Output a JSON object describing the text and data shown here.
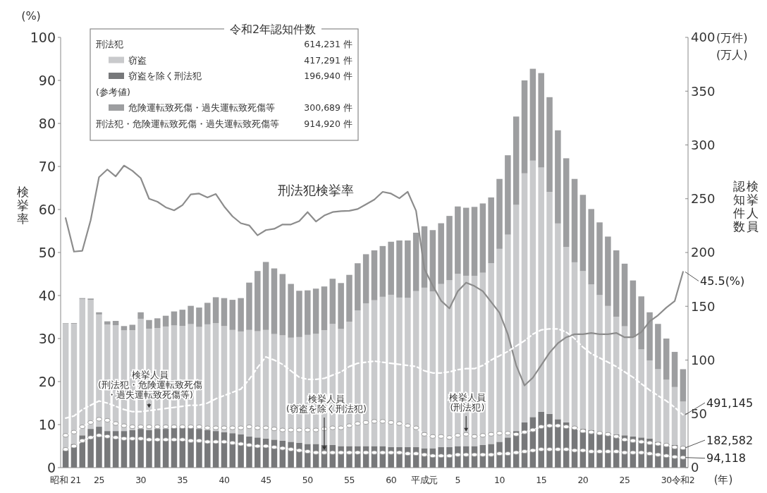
{
  "chart_data": {
    "type": "bar",
    "stacked": true,
    "ylabel": "検挙率",
    "y2label": "認知件数検挙人員",
    "xlabel": "(年)",
    "legend_title": "令和2年認知件数",
    "legend": "top left",
    "categories": [
      "昭和 21",
      null,
      null,
      null,
      "25",
      null,
      null,
      null,
      null,
      "30",
      null,
      null,
      null,
      null,
      "35",
      null,
      null,
      null,
      null,
      "40",
      null,
      null,
      null,
      null,
      "45",
      null,
      null,
      null,
      null,
      "50",
      null,
      null,
      null,
      null,
      "55",
      null,
      null,
      null,
      null,
      "60",
      null,
      null,
      null,
      "平成元",
      null,
      null,
      null,
      "5",
      null,
      null,
      null,
      null,
      "10",
      null,
      null,
      null,
      null,
      "15",
      null,
      null,
      null,
      null,
      "20",
      null,
      null,
      null,
      null,
      "25",
      null,
      null,
      null,
      null,
      "30",
      null,
      "令和2"
    ],
    "ylim": [
      0,
      100
    ],
    "yticks": [
      0,
      10,
      20,
      30,
      40,
      50,
      60,
      70,
      80,
      90,
      100
    ],
    "y2lim": [
      0,
      400
    ],
    "y2ticks": [
      0,
      50,
      100,
      150,
      200,
      250,
      300,
      350,
      400
    ],
    "annotations": [
      "(%)",
      "(万件)",
      "(万人)",
      "刑法犯",
      "614,231 件",
      "417,291 件",
      "196,940 件",
      "(参考値)",
      "300,689 件",
      "刑法犯・危険運転致死傷・過失運転致死傷等",
      "914,920 件",
      {
        "text": "491,145",
        "x": "令和2",
        "y": 12.28
      },
      {
        "text": "182,582",
        "x": "令和2",
        "y": 4.58
      },
      {
        "text": "94,118",
        "x": "令和2",
        "y": 2.35
      }
    ],
    "series": [
      {
        "name": "窃盗を除く刑法犯",
        "axis": "y2",
        "color": "#77787a",
        "values": [
          16,
          22,
          30,
          36,
          38,
          34,
          34,
          34,
          35,
          36,
          35,
          36,
          36,
          37,
          37,
          37,
          36,
          35,
          34,
          33,
          32,
          31,
          29,
          28,
          27,
          26,
          25,
          24,
          23,
          22,
          22,
          21,
          21,
          20,
          20,
          20,
          20,
          20,
          20,
          19,
          19,
          19,
          19,
          18,
          18,
          19,
          19,
          20,
          20,
          20,
          21,
          22,
          24,
          28,
          34,
          42,
          47,
          52,
          50,
          45,
          42,
          38,
          36,
          35,
          33,
          32,
          31,
          30,
          29,
          28,
          27,
          24,
          22,
          21,
          19.7
        ]
      },
      {
        "name": "窃盗",
        "axis": "y2",
        "color": "#c9cacc",
        "values": [
          118.0,
          111.8,
          126.8,
          120.0,
          104.4,
          99.0,
          98.4,
          93.6,
          92.8,
          102.4,
          94.2,
          93.8,
          95.2,
          95.2,
          94.8,
          96.4,
          94.8,
          98.2,
          100.4,
          98.6,
          96.0,
          95.6,
          99.0,
          98.8,
          101.0,
          98.2,
          98.0,
          96.8,
          98.4,
          101.4,
          102.4,
          106.8,
          112.6,
          108.9,
          115.7,
          126.1,
          132.8,
          135.6,
          138.8,
          141.7,
          139.1,
          138.8,
          145.1,
          149.3,
          145.7,
          151.7,
          155.2,
          160.1,
          158.4,
          158.3,
          160.2,
          168.0,
          179.4,
          188.6,
          210.3,
          231.6,
          238.4,
          227.0,
          206.3,
          182.0,
          163.1,
          152.9,
          146.7,
          135.3,
          127.4,
          118.3,
          109.3,
          101.4,
          92.2,
          81.9,
          72.6,
          67.5,
          59.7,
          53.9,
          41.7
        ]
      },
      {
        "name": "危険運転致死傷・過失運転致死傷等",
        "axis": "y2",
        "color": "#9d9ea0",
        "values": [
          0.4,
          0.6,
          0.8,
          1.2,
          2.0,
          3.0,
          4.0,
          4.0,
          5.0,
          6.0,
          8.0,
          9.0,
          10.0,
          13.0,
          15.0,
          17.0,
          18.0,
          20.0,
          24.0,
          26.0,
          28.0,
          31.0,
          44.0,
          56.0,
          63.2,
          61.0,
          57.0,
          50.0,
          43.0,
          41.4,
          42.0,
          40.6,
          42.0,
          42.7,
          43.5,
          43.9,
          45.6,
          46.4,
          47.2,
          49.3,
          53.1,
          53.4,
          54.3,
          57.1,
          57.1,
          56.5,
          59.8,
          62.7,
          63.2,
          64.1,
          64.4,
          61.2,
          65.0,
          73.8,
          82.1,
          86.4,
          85.4,
          87.8,
          88.1,
          86.6,
          82.5,
          77.5,
          70.9,
          70.1,
          67.6,
          64.5,
          61.7,
          58.2,
          52.8,
          49.3,
          44.8,
          42.1,
          38.3,
          32.7,
          30.1
        ]
      },
      {
        "name": "刑法犯検挙率",
        "type": "line",
        "axis": "y",
        "color": "#8c8c8c",
        "line_style": "solid",
        "values": [
          58.0,
          50.2,
          50.4,
          57.5,
          67.5,
          69.3,
          67.7,
          70.2,
          69.0,
          67.3,
          62.5,
          61.8,
          60.5,
          59.8,
          61.0,
          63.5,
          63.7,
          62.8,
          63.6,
          60.7,
          58.4,
          56.8,
          56.3,
          54.0,
          55.2,
          55.5,
          56.5,
          56.5,
          57.3,
          59.4,
          57.2,
          58.6,
          59.4,
          59.6,
          59.7,
          60.1,
          61.2,
          62.3,
          64.1,
          63.7,
          62.6,
          64.1,
          59.7,
          46.2,
          42.3,
          38.8,
          37.0,
          41.0,
          43.0,
          42.2,
          41.0,
          38.5,
          36.0,
          31.0,
          23.8,
          19.1,
          20.9,
          23.8,
          26.7,
          28.9,
          30.3,
          31.0,
          31.0,
          31.3,
          31.0,
          31.0,
          31.3,
          30.3,
          30.3,
          31.5,
          34.0,
          35.4,
          37.2,
          38.7,
          45.5
        ],
        "value_labels": [
          null,
          null,
          null,
          null,
          null,
          null,
          null,
          null,
          null,
          null,
          null,
          null,
          null,
          null,
          null,
          null,
          null,
          null,
          null,
          null,
          null,
          null,
          null,
          null,
          null,
          null,
          null,
          null,
          null,
          null,
          null,
          null,
          null,
          null,
          null,
          null,
          null,
          null,
          null,
          null,
          null,
          null,
          null,
          null,
          null,
          null,
          null,
          null,
          null,
          null,
          null,
          null,
          null,
          null,
          null,
          null,
          null,
          null,
          null,
          null,
          null,
          null,
          null,
          null,
          null,
          null,
          null,
          null,
          null,
          null,
          null,
          null,
          null,
          null,
          "45.5(%)"
        ]
      },
      {
        "name": "検挙人員(刑法犯・危険運転致死傷・過失運転致死傷等)",
        "type": "line",
        "axis": "y2",
        "color": "#ffffff",
        "line_style": "dashed",
        "values": [
          46,
          48,
          54,
          58,
          62,
          60,
          57,
          54,
          52,
          52,
          53,
          54,
          55,
          56,
          57,
          58,
          58,
          60,
          64,
          67,
          70,
          73,
          82,
          93,
          103,
          100,
          96,
          90,
          84,
          82,
          82,
          83,
          86,
          89,
          94,
          97,
          98,
          99,
          98,
          97,
          96,
          95,
          94,
          90,
          88,
          88,
          89,
          91,
          92,
          92,
          95,
          100,
          104,
          108,
          113,
          118,
          124,
          128,
          129,
          129,
          126,
          120,
          112,
          106,
          102,
          98,
          94,
          89,
          84,
          78,
          72,
          67,
          62,
          56,
          49.1
        ]
      },
      {
        "name": "検挙人員(刑法犯)",
        "type": "line",
        "axis": "y2",
        "color": "#ffffff",
        "line_style": "dashed",
        "marker": "circle",
        "values": [
          30,
          33,
          38,
          42,
          45,
          44,
          41,
          39,
          38,
          38,
          38,
          38,
          38,
          38,
          38,
          38,
          38,
          37,
          37,
          37,
          37,
          37,
          38,
          37,
          37,
          36,
          35,
          35,
          35,
          35,
          35,
          36,
          37,
          37,
          39,
          41,
          42,
          43,
          43,
          42,
          41,
          39,
          37,
          31,
          29,
          29,
          28,
          30,
          31,
          29,
          30,
          31,
          32,
          32,
          31,
          33,
          35,
          38,
          39,
          39,
          38,
          37,
          34,
          33,
          32,
          31,
          29,
          26,
          25,
          24,
          23,
          22,
          21,
          19,
          18.3
        ]
      },
      {
        "name": "検挙人員(窃盗を除く刑法犯)",
        "type": "line",
        "axis": "y2",
        "color": "#ffffff",
        "line_style": "dashed",
        "marker": "circle",
        "values": [
          17,
          20,
          25,
          28,
          30,
          29,
          28,
          27,
          27,
          27,
          26,
          26,
          26,
          26,
          26,
          25,
          25,
          24,
          24,
          24,
          23,
          22,
          21,
          20,
          20,
          19,
          18,
          17,
          16,
          15,
          14,
          14,
          14,
          14,
          14,
          14,
          14,
          14,
          14,
          14,
          14,
          13,
          13,
          12,
          11,
          11,
          11,
          12,
          12,
          12,
          12,
          12,
          13,
          13,
          14,
          15,
          16,
          17,
          17,
          17,
          17,
          16,
          16,
          15,
          15,
          15,
          15,
          14,
          14,
          14,
          13,
          12,
          11,
          10,
          9.4
        ]
      }
    ]
  }
}
